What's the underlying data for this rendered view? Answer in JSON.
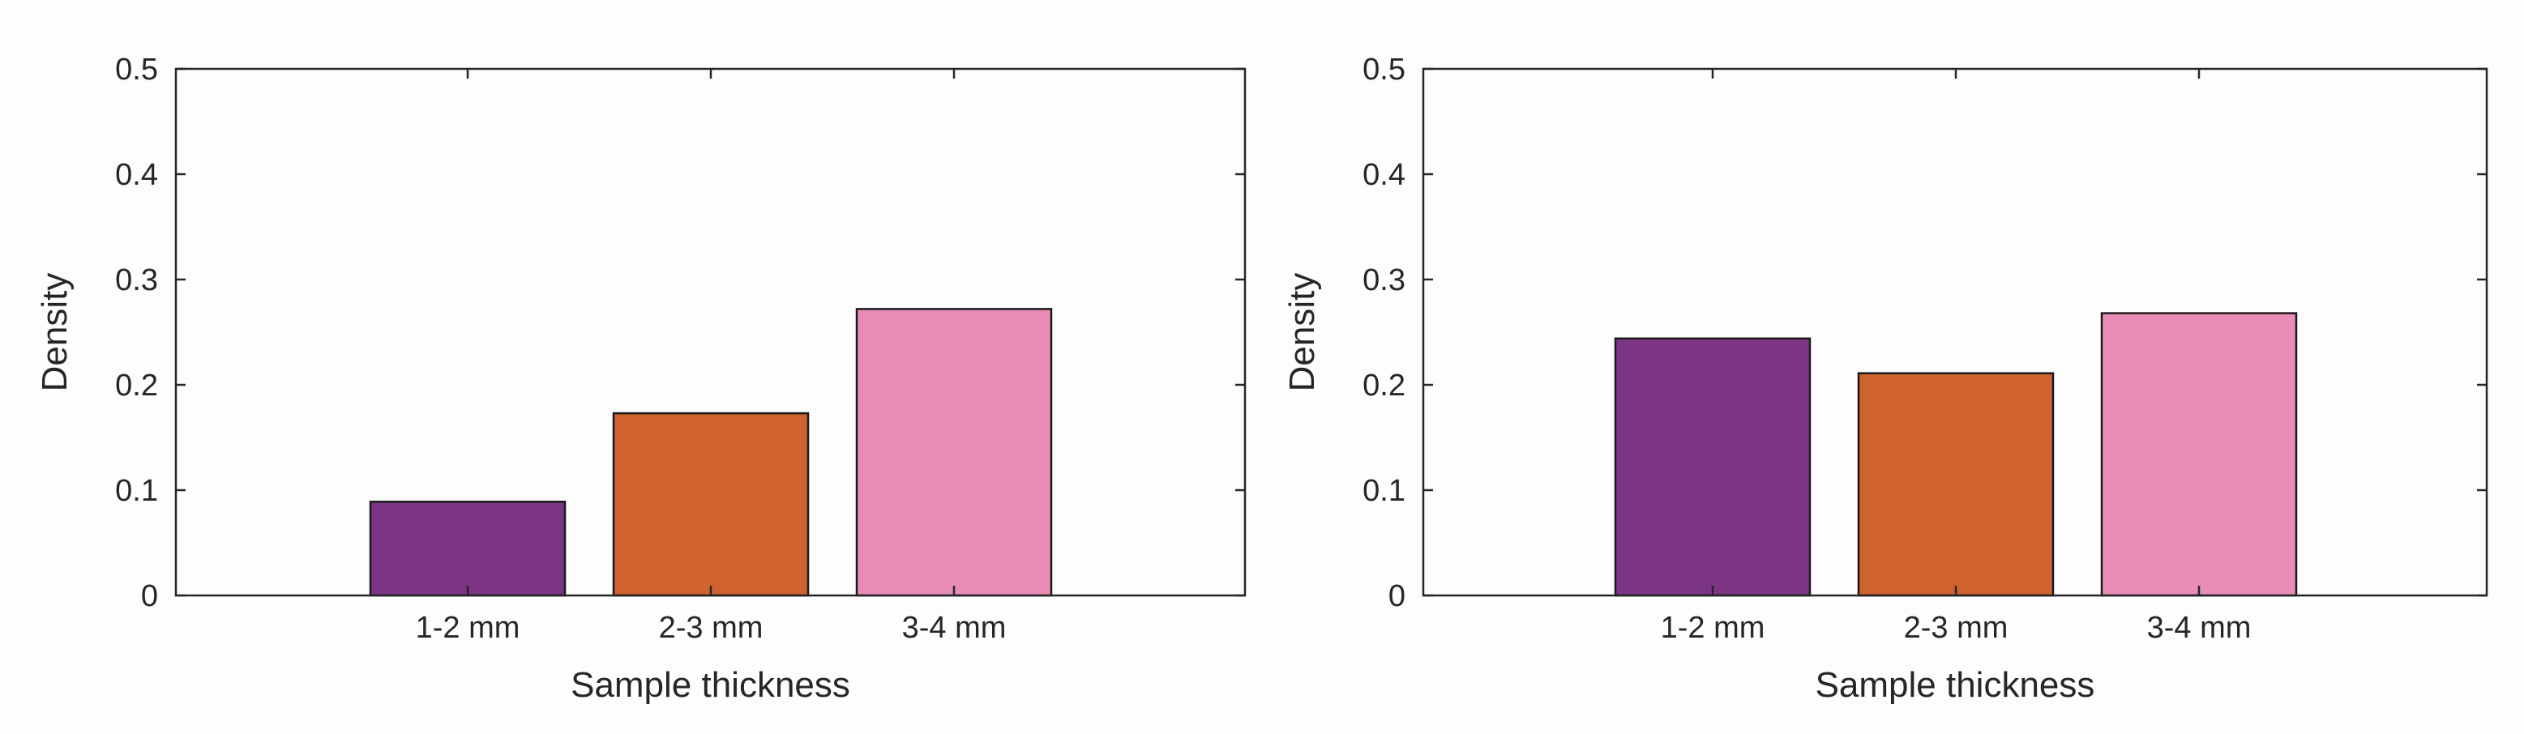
{
  "chart_data": [
    {
      "type": "bar",
      "categories": [
        "1-2 mm",
        "2-3 mm",
        "3-4 mm"
      ],
      "values": [
        0.089,
        0.173,
        0.272
      ],
      "xlabel": "Sample thickness",
      "ylabel": "Density",
      "ylim": [
        0,
        0.5
      ],
      "yticks": [
        "0",
        "0.1",
        "0.2",
        "0.3",
        "0.4",
        "0.5"
      ],
      "bar_colors": [
        "#7b3584",
        "#cf622f",
        "#e98db6"
      ],
      "grid": false
    },
    {
      "type": "bar",
      "categories": [
        "1-2 mm",
        "2-3 mm",
        "3-4 mm"
      ],
      "values": [
        0.244,
        0.211,
        0.268
      ],
      "xlabel": "Sample thickness",
      "ylabel": "Density",
      "ylim": [
        0,
        0.5
      ],
      "yticks": [
        "0",
        "0.1",
        "0.2",
        "0.3",
        "0.4",
        "0.5"
      ],
      "bar_colors": [
        "#7b3584",
        "#cf622f",
        "#e98db6"
      ],
      "grid": false
    }
  ]
}
